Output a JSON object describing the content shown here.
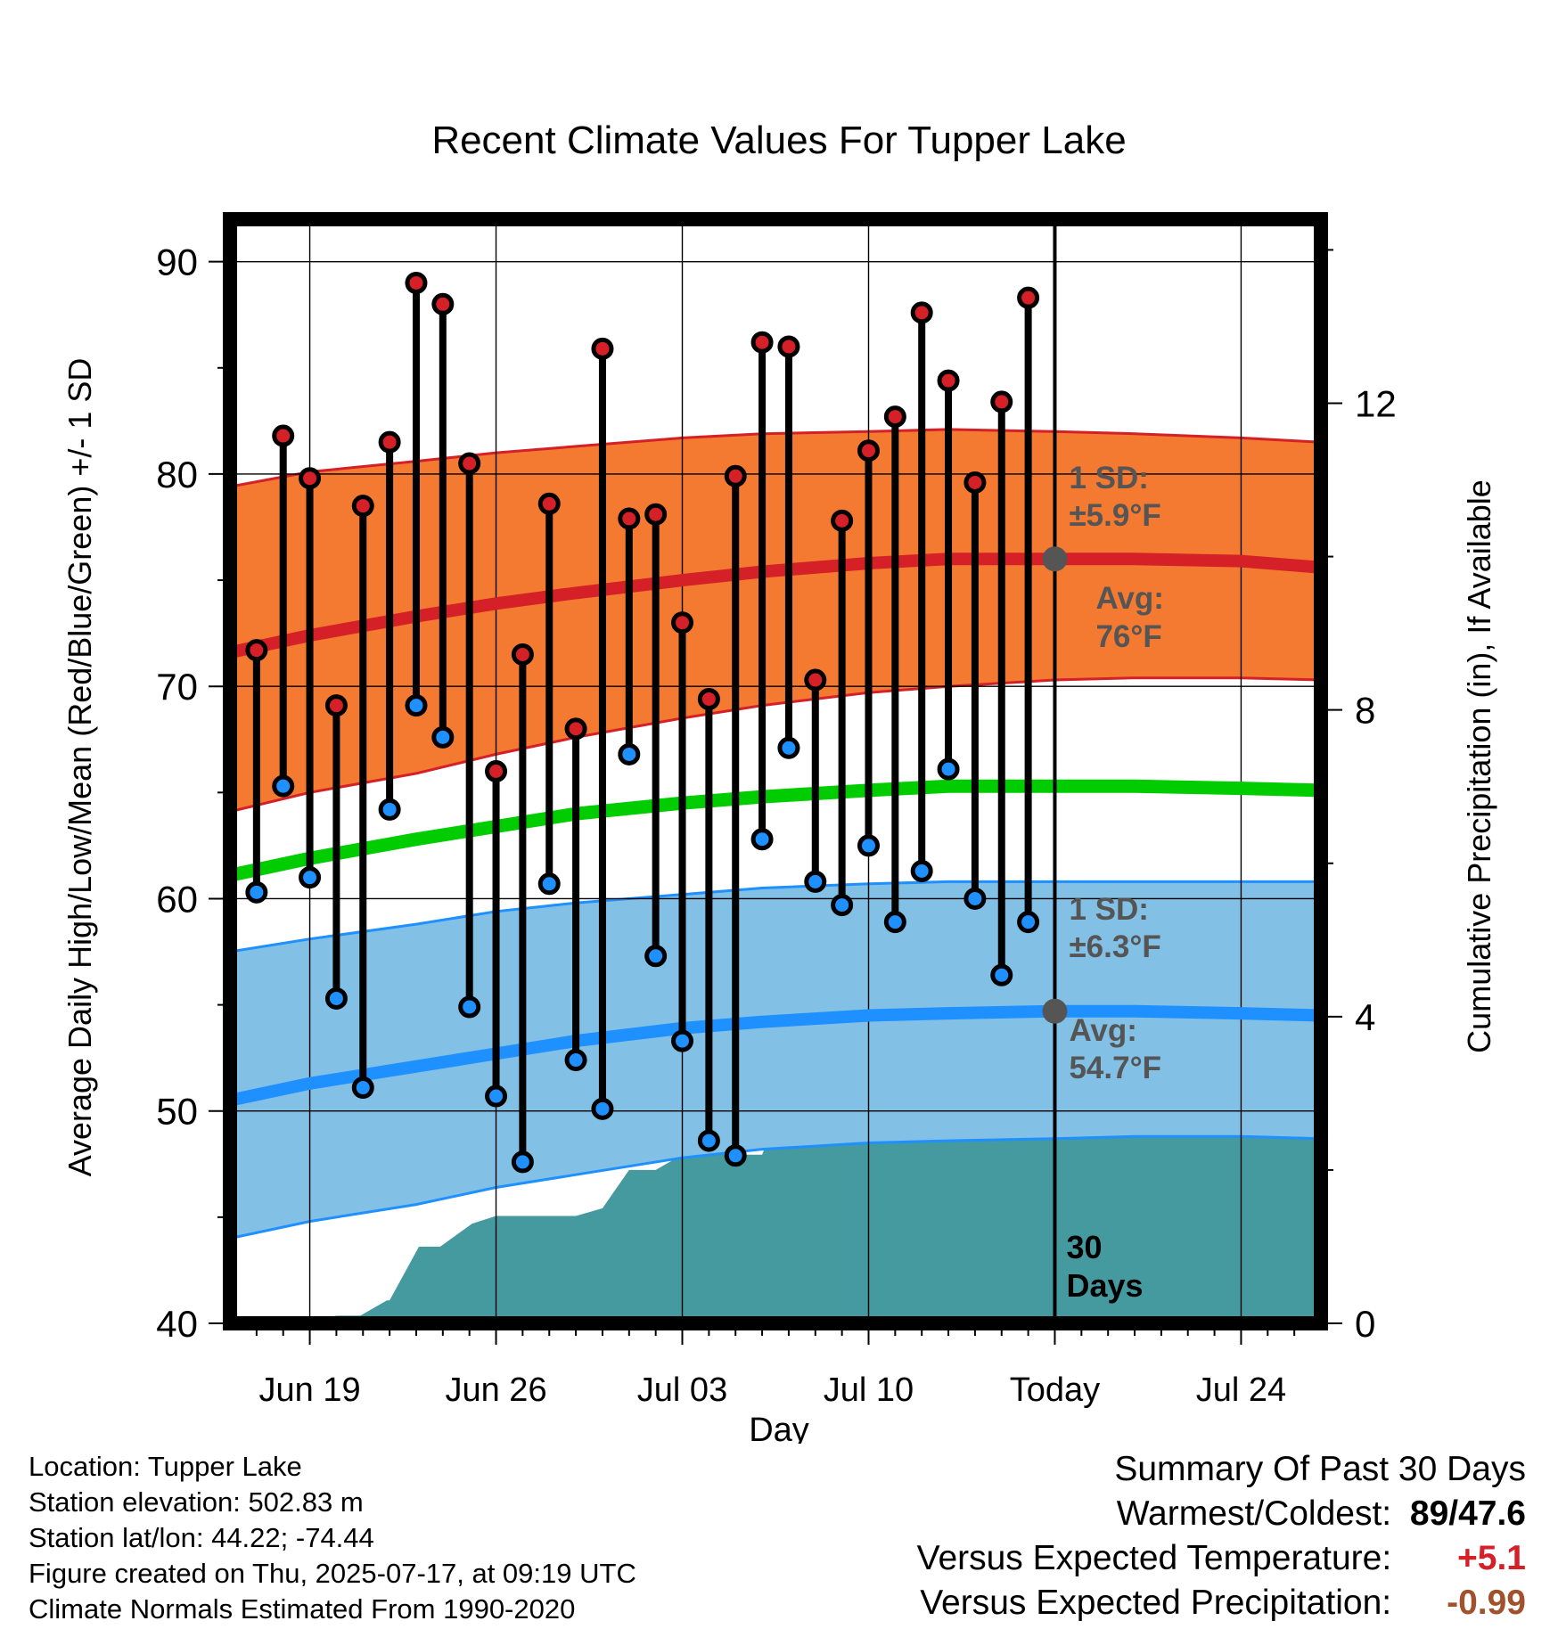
{
  "chart_data": {
    "type": "line",
    "title": "Recent Climate Values For Tupper Lake",
    "xlabel": "Day",
    "ylabel": "Average Daily High/Low/Mean (Red/Blue/Green) +/- 1 SD",
    "y2label": "Cumulative Precipitation (in), If Available",
    "ylim": [
      40,
      92
    ],
    "y2lim": [
      0,
      14.4
    ],
    "xlim": [
      -3,
      38
    ],
    "yticks": [
      40,
      50,
      60,
      70,
      80,
      90
    ],
    "y2ticks": [
      0,
      4,
      8,
      12
    ],
    "xtick_labels": [
      {
        "day": 0,
        "label": "Jun 19"
      },
      {
        "day": 7,
        "label": "Jun 26"
      },
      {
        "day": 14,
        "label": "Jul 03"
      },
      {
        "day": 21,
        "label": "Jul 10"
      },
      {
        "day": 28,
        "label": "Today"
      },
      {
        "day": 35,
        "label": "Jul 24"
      }
    ],
    "today_day": 28,
    "today_label": "30\nDays",
    "days": [
      -2,
      -1,
      0,
      1,
      2,
      3,
      4,
      5,
      6,
      7,
      8,
      9,
      10,
      11,
      12,
      13,
      14,
      15,
      16,
      17,
      18,
      19,
      20,
      21,
      22,
      23,
      24,
      25,
      26,
      27
    ],
    "highs": [
      71.7,
      81.8,
      79.8,
      69.1,
      78.5,
      81.5,
      89.0,
      88.0,
      80.5,
      66.0,
      71.5,
      78.6,
      68.0,
      85.9,
      77.9,
      78.1,
      73.0,
      69.4,
      79.9,
      86.2,
      86.0,
      70.3,
      77.8,
      81.1,
      82.7,
      87.6,
      84.4,
      79.6,
      83.4,
      88.3
    ],
    "lows": [
      60.3,
      65.3,
      61.0,
      55.3,
      51.1,
      64.2,
      69.1,
      67.6,
      54.9,
      50.7,
      47.6,
      60.7,
      52.4,
      50.1,
      66.8,
      57.3,
      53.3,
      48.6,
      47.9,
      62.8,
      67.1,
      60.8,
      59.7,
      62.5,
      58.9,
      61.3,
      66.1,
      60.0,
      56.4,
      58.9
    ],
    "normal_high": {
      "days": [
        -3,
        0,
        4,
        7,
        10,
        14,
        17,
        21,
        24,
        28,
        31,
        35,
        38
      ],
      "values": [
        71.6,
        72.4,
        73.3,
        73.9,
        74.4,
        75.0,
        75.4,
        75.8,
        76.0,
        76.0,
        76.0,
        75.9,
        75.6
      ],
      "sd": 5.9,
      "upper": [
        79.4,
        80.1,
        80.6,
        81.0,
        81.3,
        81.7,
        81.9,
        82.0,
        82.1,
        82.0,
        81.9,
        81.7,
        81.5
      ],
      "lower": [
        64.1,
        65.0,
        65.9,
        66.8,
        67.6,
        68.5,
        69.1,
        69.7,
        70.0,
        70.3,
        70.4,
        70.4,
        70.3
      ]
    },
    "normal_low": {
      "days": [
        -3,
        0,
        4,
        7,
        10,
        14,
        17,
        21,
        24,
        28,
        31,
        35,
        38
      ],
      "values": [
        50.5,
        51.3,
        52.1,
        52.7,
        53.3,
        53.9,
        54.2,
        54.5,
        54.6,
        54.7,
        54.7,
        54.6,
        54.5
      ],
      "sd": 6.3,
      "upper": [
        57.5,
        58.1,
        58.8,
        59.4,
        59.8,
        60.2,
        60.5,
        60.7,
        60.8,
        60.8,
        60.8,
        60.8,
        60.8
      ],
      "lower": [
        44.0,
        44.8,
        45.6,
        46.4,
        47.0,
        47.8,
        48.2,
        48.5,
        48.6,
        48.7,
        48.8,
        48.8,
        48.7
      ]
    },
    "normal_mean": {
      "days": [
        -3,
        0,
        4,
        7,
        10,
        14,
        17,
        21,
        24,
        28,
        31,
        35,
        38
      ],
      "values": [
        61.1,
        61.9,
        62.8,
        63.4,
        64.0,
        64.5,
        64.8,
        65.1,
        65.3,
        65.3,
        65.3,
        65.2,
        65.1
      ]
    },
    "precip_days": [
      -3,
      0,
      1,
      1.9,
      2.9,
      3,
      4.1,
      4.9,
      6.1,
      7,
      8,
      9,
      10,
      11,
      12,
      13,
      14,
      15,
      16,
      17,
      18,
      19,
      20,
      21,
      22,
      23,
      24,
      25,
      26,
      27,
      28,
      38
    ],
    "precip_cum": [
      0,
      0,
      0.1,
      0.1,
      0.3,
      0.3,
      1.0,
      1.0,
      1.3,
      1.4,
      1.4,
      1.4,
      1.4,
      1.5,
      2.0,
      2.0,
      2.2,
      2.2,
      2.2,
      2.2,
      3.1,
      3.1,
      3.1,
      3.1,
      3.1,
      3.3,
      3.6,
      3.6,
      3.6,
      3.6,
      3.6,
      3.6
    ],
    "annotations": {
      "high_sd_label": "1 SD:",
      "high_sd_value": "±5.9°F",
      "high_avg_label": "Avg:",
      "high_avg_value": "76°F",
      "low_sd_label": "1 SD:",
      "low_sd_value": "±6.3°F",
      "low_avg_label": "Avg:",
      "low_avg_value": "54.7°F",
      "today_avg_high": 76.0,
      "today_avg_low": 54.7
    },
    "colors": {
      "high_band": "#f37a30",
      "high_line": "#d42026",
      "low_band": "#82c0e6",
      "low_line": "#1e90ff",
      "mean_line": "#00cc00",
      "precip": "#459a9f",
      "high_dot": "#d42026",
      "low_dot": "#1e90ff",
      "annotation": "#555555"
    },
    "grid": true
  },
  "info": {
    "location": "Location: Tupper Lake",
    "elevation": "Station elevation: 502.83 m",
    "latlon": "Station lat/lon: 44.22; -74.44",
    "created": "Figure created on Thu, 2025-07-17, at 09:19 UTC",
    "normals": "Climate Normals Estimated From 1990-2020"
  },
  "summary": {
    "title": "Summary Of Past 30 Days",
    "warmest_label": "Warmest/Coldest:",
    "warmest_value": "89/47.6",
    "temp_label": "Versus Expected Temperature:",
    "temp_value": "+5.1",
    "temp_color": "#d42026",
    "precip_label": "Versus Expected Precipitation:",
    "precip_value": "-0.99",
    "precip_color": "#a0522d"
  }
}
